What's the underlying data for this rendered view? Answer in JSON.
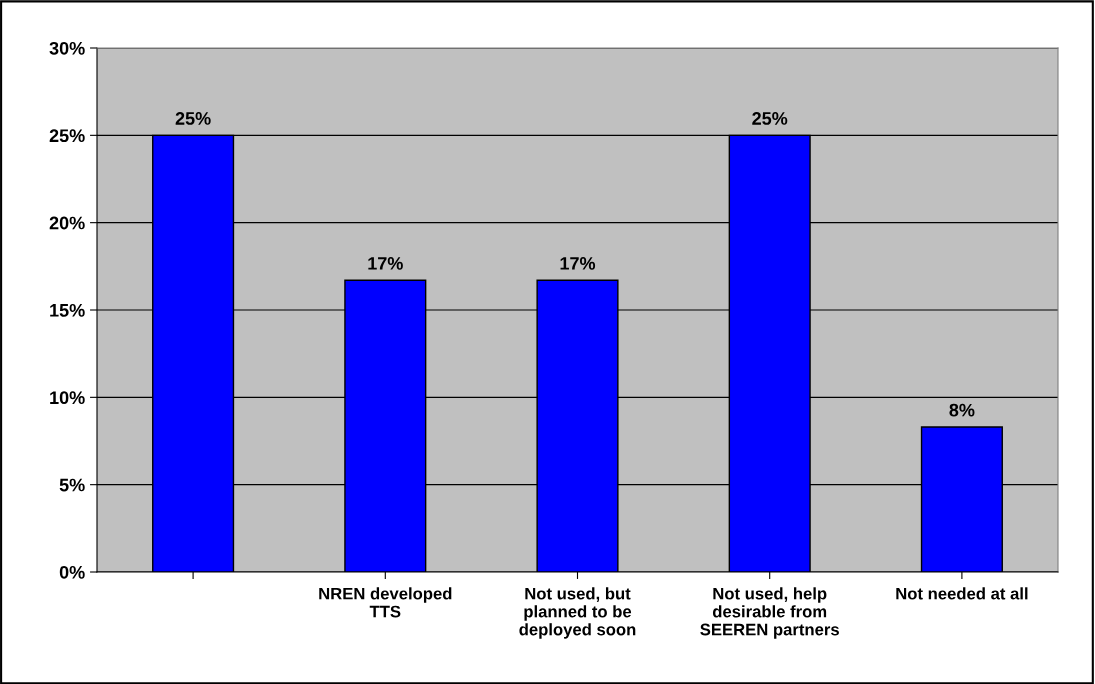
{
  "chart_data": {
    "type": "bar",
    "categories": [
      null,
      "NREN developed\nTTS",
      "Not used, but\nplanned to be\ndeployed soon",
      "Not used, help\ndesirable from\nSEEREN partners",
      "Not needed at all"
    ],
    "values": [
      25,
      16.7,
      16.7,
      25,
      8.3
    ],
    "value_labels": [
      "25%",
      "17%",
      "17%",
      "25%",
      "8%"
    ],
    "color": "#0000ff",
    "ylim": [
      0,
      30
    ],
    "yticks": [
      {
        "value": 0,
        "label": "0%"
      },
      {
        "value": 5,
        "label": "5%"
      },
      {
        "value": 10,
        "label": "10%"
      },
      {
        "value": 15,
        "label": "15%"
      },
      {
        "value": 20,
        "label": "20%"
      },
      {
        "value": 25,
        "label": "25%"
      },
      {
        "value": 30,
        "label": "30%"
      }
    ],
    "grid": "y"
  }
}
